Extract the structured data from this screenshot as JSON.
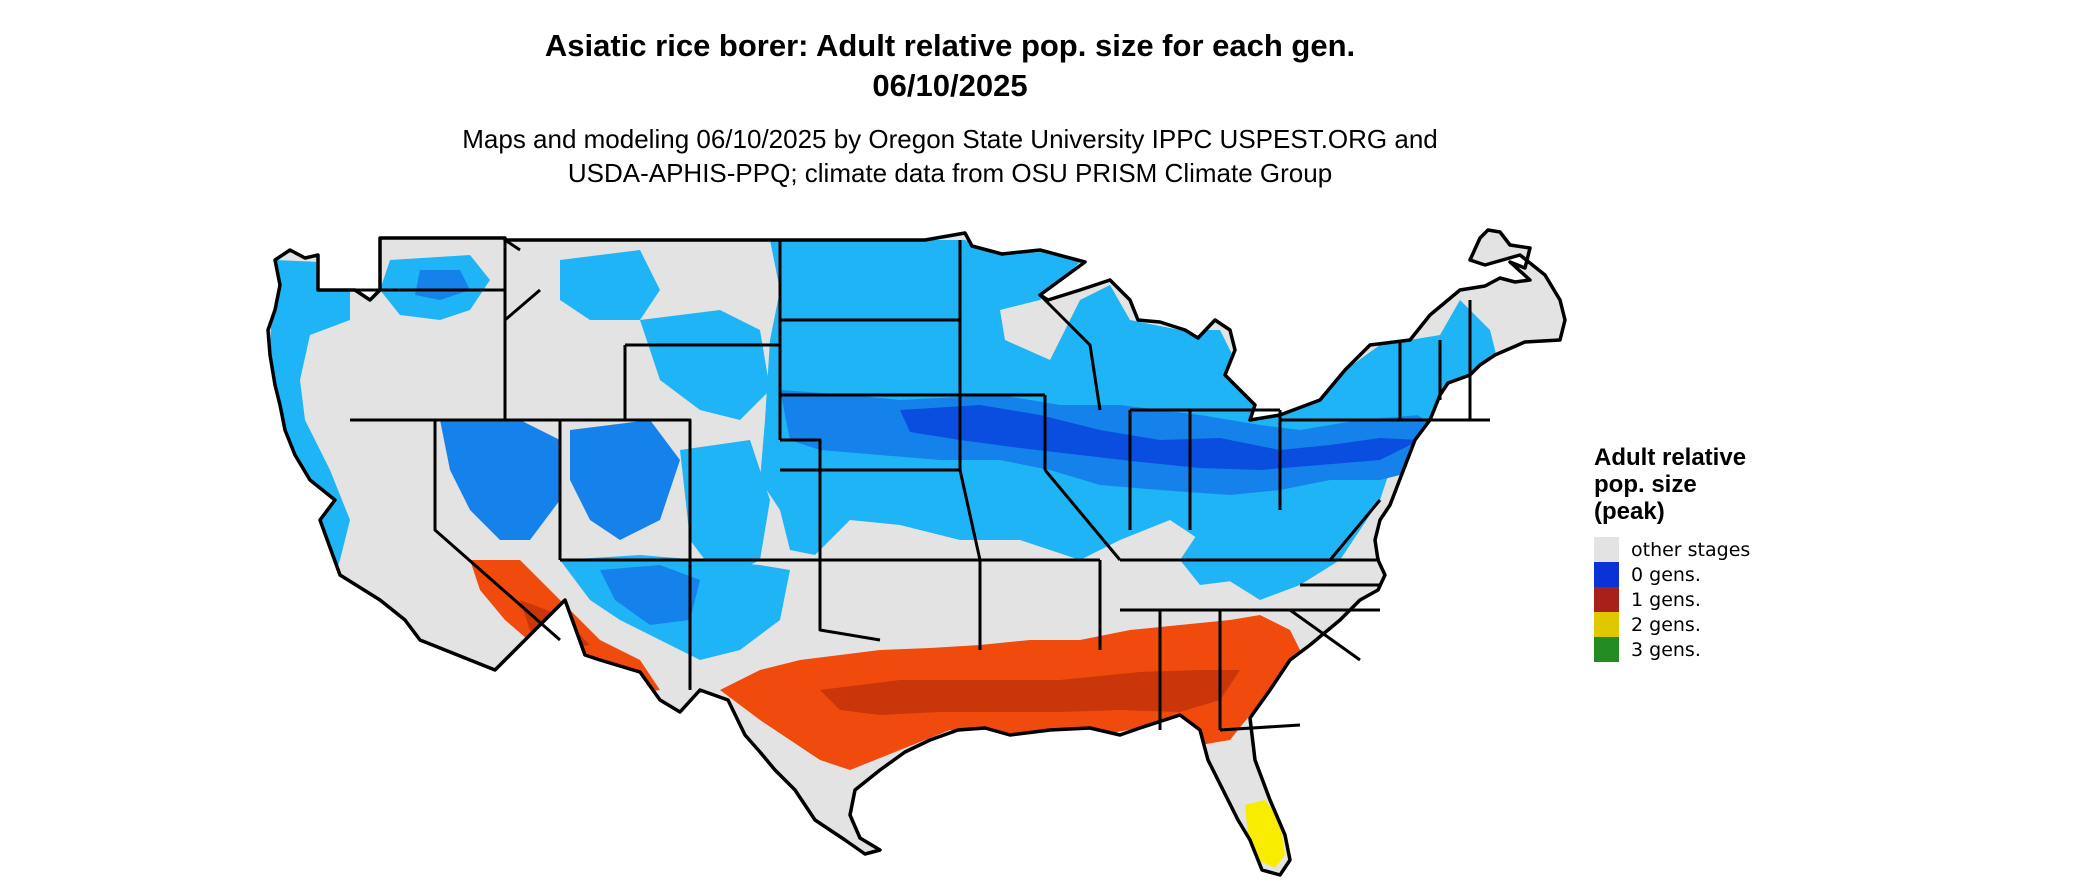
{
  "map": {
    "title_line1": "Asiatic rice borer: Adult relative pop. size for each gen.",
    "title_line2": "06/10/2025",
    "subtitle_line1": "Maps and modeling 06/10/2025 by Oregon State University IPPC USPEST.ORG and",
    "subtitle_line2": "USDA-APHIS-PPQ; climate data from OSU PRISM Climate Group",
    "region": "contiguous United States"
  },
  "legend": {
    "title_line1": "Adult relative",
    "title_line2": "pop. size",
    "title_line3": "(peak)",
    "items": [
      {
        "label": "other stages",
        "color": "#e3e3e3"
      },
      {
        "label": "0 gens.",
        "color": "#0a32d6"
      },
      {
        "label": "1 gens.",
        "color": "#a8201a"
      },
      {
        "label": "2 gens.",
        "color": "#e0c800"
      },
      {
        "label": "3 gens.",
        "color": "#228b22"
      }
    ]
  },
  "map_colors": {
    "other_stages": "#e3e3e3",
    "light_blue": "#1eb4f5",
    "medium_blue": "#1482ea",
    "dark_blue": "#0a4ee0",
    "orange_red": "#f04a0c",
    "dark_red": "#c8360a",
    "yellow": "#f8ec00",
    "outline": "#000000"
  }
}
